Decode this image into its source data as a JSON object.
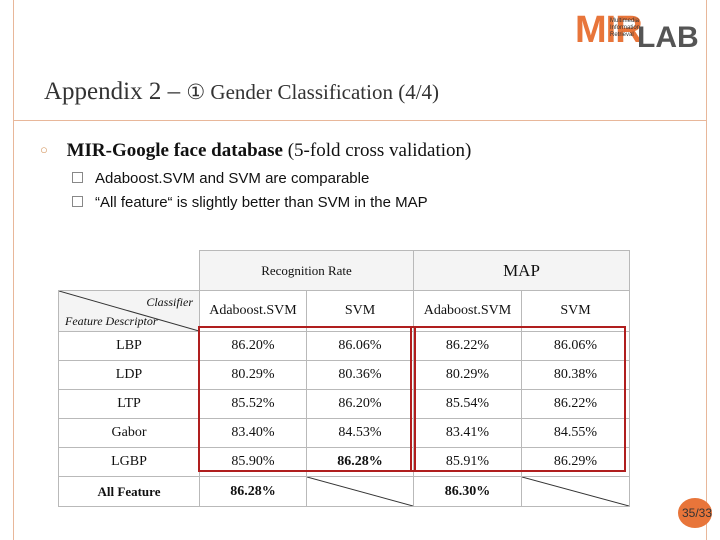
{
  "logo": {
    "main": "MIR",
    "lab": "LAB",
    "tagline": "Multimedia Information Retrieval"
  },
  "title": {
    "main": "Appendix 2 –",
    "sub": "① Gender Classification (4/4)"
  },
  "bullet": {
    "bold": "MIR-Google face database",
    "rest": " (5-fold cross validation)"
  },
  "sub_bullets": [
    "Adaboost.SVM and SVM are comparable",
    "“All feature“ is slightly better than SVM in the MAP"
  ],
  "table": {
    "group_headers": {
      "recognition": "Recognition Rate",
      "map": "MAP"
    },
    "corner": {
      "classifier": "Classifier",
      "descriptor": "Feature Descriptor"
    },
    "col_headers": [
      "Adaboost.SVM",
      "SVM",
      "Adaboost.SVM",
      "SVM"
    ],
    "rows": [
      {
        "feature": "LBP",
        "values": [
          "86.20%",
          "86.06%",
          "86.22%",
          "86.06%"
        ]
      },
      {
        "feature": "LDP",
        "values": [
          "80.29%",
          "80.36%",
          "80.29%",
          "80.38%"
        ]
      },
      {
        "feature": "LTP",
        "values": [
          "85.52%",
          "86.20%",
          "85.54%",
          "86.22%"
        ]
      },
      {
        "feature": "Gabor",
        "values": [
          "83.40%",
          "84.53%",
          "83.41%",
          "84.55%"
        ]
      },
      {
        "feature": "LGBP",
        "values": [
          "85.90%",
          "86.28%",
          "85.91%",
          "86.29%"
        ]
      },
      {
        "feature": "All Feature",
        "values": [
          "86.28%",
          "",
          "86.30%",
          ""
        ]
      }
    ]
  },
  "page": "35/33"
}
